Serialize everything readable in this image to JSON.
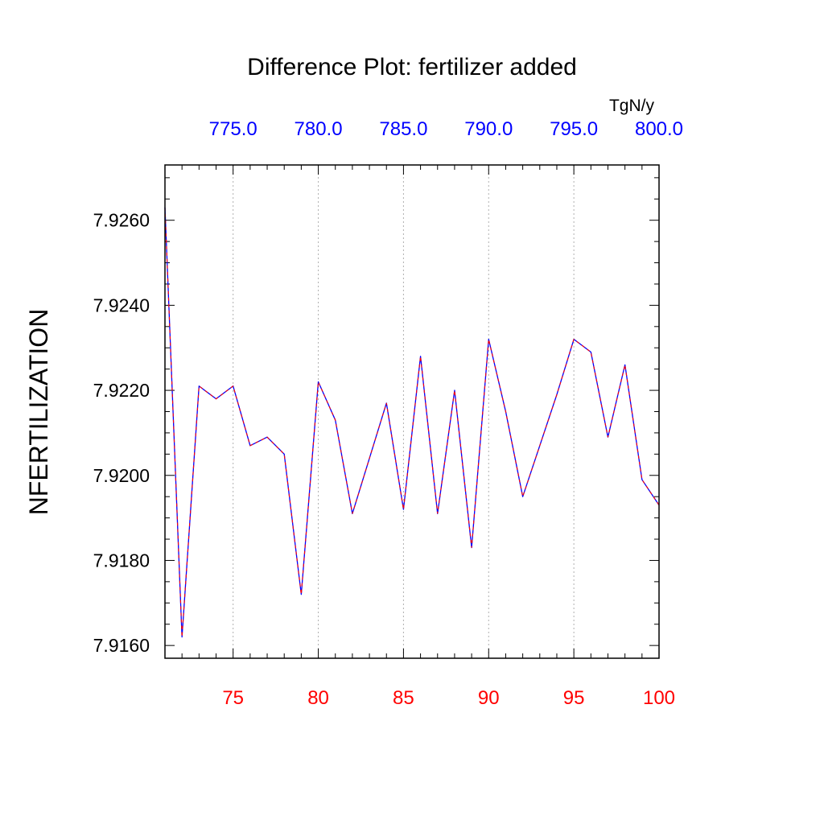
{
  "chart_data": {
    "type": "line",
    "title": "Difference Plot: fertilizer added",
    "ylabel": "NFERTILIZATION",
    "units": "TgN/y",
    "xlim": [
      71,
      100
    ],
    "ylim": [
      7.9157,
      7.9273
    ],
    "x": [
      71,
      72,
      73,
      74,
      75,
      76,
      77,
      78,
      79,
      80,
      81,
      82,
      83,
      84,
      85,
      86,
      87,
      88,
      89,
      90,
      91,
      92,
      93,
      94,
      95,
      96,
      97,
      98,
      99,
      100
    ],
    "series": [
      {
        "color": "#0000ff",
        "values": [
          7.9263,
          7.9162,
          7.9221,
          7.9218,
          7.9221,
          7.9207,
          7.9209,
          7.9205,
          7.9172,
          7.9222,
          7.9213,
          7.9191,
          7.9204,
          7.9217,
          7.9192,
          7.9228,
          7.9191,
          7.922,
          7.9183,
          7.9232,
          7.9215,
          7.9195,
          7.9207,
          7.9219,
          7.9232,
          7.9229,
          7.9209,
          7.9226,
          7.9199,
          7.9193
        ]
      }
    ],
    "line_color_overlay": "#ff0000",
    "bottom_axis": {
      "color": "#ff0000",
      "ticks": [
        75,
        80,
        85,
        90,
        95,
        100
      ],
      "labels": [
        "75",
        "80",
        "85",
        "90",
        "95",
        "100"
      ]
    },
    "top_axis": {
      "color": "#0000ff",
      "ticks": [
        75,
        80,
        85,
        90,
        95,
        100
      ],
      "labels": [
        "775.0",
        "780.0",
        "785.0",
        "790.0",
        "795.0",
        "800.0"
      ]
    },
    "left_axis": {
      "ticks": [
        7.916,
        7.918,
        7.92,
        7.922,
        7.924,
        7.926
      ],
      "labels": [
        "7.9160",
        "7.9180",
        "7.9200",
        "7.9220",
        "7.9240",
        "7.9260"
      ]
    },
    "grid": "vertical-dotted",
    "legend": "none"
  }
}
